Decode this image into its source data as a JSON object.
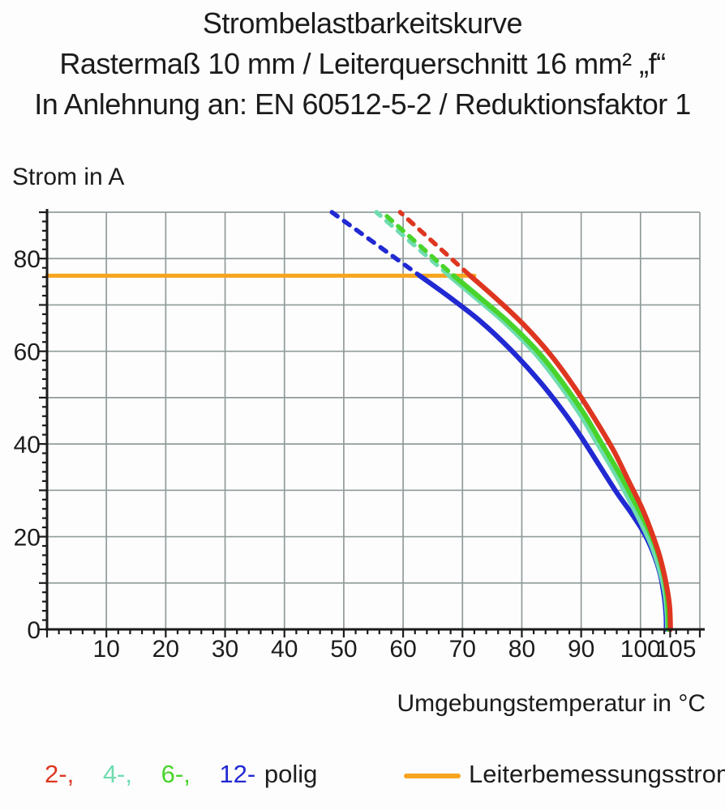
{
  "title": {
    "line1": "Strombelastbarkeitskurve",
    "line2": "Rastermaß 10 mm / Leiterquerschnitt 16 mm² „f“",
    "line3": "In Anlehnung an: EN 60512-5-2 / Reduktionsfaktor 1"
  },
  "chart_data": {
    "type": "line",
    "title": "Strombelastbarkeitskurve / Rastermaß 10 mm / Leiterquerschnitt 16 mm² „f“ / In Anlehnung an: EN 60512-5-2 / Reduktionsfaktor 1",
    "ylabel": "Strom in A",
    "xlabel": "Umgebungstemperatur in °C",
    "xlim": [
      0,
      110
    ],
    "ylim": [
      0,
      90
    ],
    "grid": true,
    "grid_step": 10,
    "minor_tick_step": 2,
    "x_ticks_labeled": [
      10,
      20,
      30,
      40,
      50,
      60,
      70,
      80,
      90,
      100,
      105
    ],
    "y_ticks_labeled": [
      0,
      20,
      40,
      60,
      80
    ],
    "colors": {
      "grid": "#919b9b",
      "axis": "#1b1b1b",
      "text": "#1c1c1c",
      "rated": "#f7a41e",
      "poles_2": "#de3620",
      "poles_4": "#6fdcb0",
      "poles_6": "#49d42b",
      "poles_12": "#2129d2"
    },
    "rated_current_line": {
      "label": "Leiterbemessungsstrom",
      "value_a": 76.3,
      "x_start": 0,
      "x_end": 72
    },
    "series": [
      {
        "name": "2-polig",
        "color": "#de3620",
        "dashed": [
          [
            59.5,
            90
          ],
          [
            71.3,
            76.3
          ]
        ],
        "solid": [
          [
            71.3,
            76.3
          ],
          [
            76,
            71
          ],
          [
            80.5,
            65.5
          ],
          [
            85,
            59
          ],
          [
            89,
            52
          ],
          [
            92.5,
            45
          ],
          [
            95.5,
            38.5
          ],
          [
            98,
            32
          ],
          [
            100.3,
            26
          ],
          [
            102,
            20.5
          ],
          [
            103.3,
            15.5
          ],
          [
            104.3,
            10
          ],
          [
            104.9,
            5
          ],
          [
            105.05,
            0
          ]
        ]
      },
      {
        "name": "4-polig",
        "color": "#6fdcb0",
        "dashed": [
          [
            55.5,
            90
          ],
          [
            67.8,
            76.3
          ]
        ],
        "solid": [
          [
            67.8,
            76.3
          ],
          [
            72.3,
            71.5
          ],
          [
            77.3,
            66
          ],
          [
            82.3,
            59.5
          ],
          [
            86.3,
            53
          ],
          [
            89.8,
            46.5
          ],
          [
            92.8,
            40
          ],
          [
            95.8,
            33.5
          ],
          [
            98.3,
            27.5
          ],
          [
            100.3,
            22.5
          ],
          [
            101.9,
            18
          ],
          [
            103.2,
            13
          ],
          [
            104.1,
            8
          ],
          [
            104.5,
            3
          ],
          [
            104.55,
            0
          ]
        ]
      },
      {
        "name": "6-polig",
        "color": "#49d42b",
        "dashed": [
          [
            56.5,
            90
          ],
          [
            68.5,
            76.3
          ]
        ],
        "solid": [
          [
            68.5,
            76.3
          ],
          [
            73,
            71.5
          ],
          [
            78,
            66
          ],
          [
            83,
            59.5
          ],
          [
            87,
            53
          ],
          [
            90.5,
            46.5
          ],
          [
            93.5,
            40
          ],
          [
            96.5,
            33.5
          ],
          [
            99,
            27.5
          ],
          [
            101,
            22.5
          ],
          [
            102.5,
            18
          ],
          [
            103.7,
            13
          ],
          [
            104.4,
            8
          ],
          [
            104.7,
            3
          ],
          [
            104.75,
            0
          ]
        ]
      },
      {
        "name": "12-polig",
        "color": "#2129d2",
        "dashed": [
          [
            48,
            90
          ],
          [
            62.8,
            76.3
          ]
        ],
        "solid": [
          [
            62.8,
            76.3
          ],
          [
            68,
            71.5
          ],
          [
            73,
            66.5
          ],
          [
            78,
            60.5
          ],
          [
            83,
            53.5
          ],
          [
            87,
            47
          ],
          [
            90,
            41.5
          ],
          [
            93,
            35.5
          ],
          [
            96,
            29.5
          ],
          [
            98.5,
            25
          ],
          [
            100.5,
            21
          ],
          [
            102,
            17
          ],
          [
            103.3,
            12
          ],
          [
            104,
            7
          ],
          [
            104.3,
            3
          ],
          [
            104.35,
            0
          ]
        ]
      }
    ]
  },
  "legend": {
    "poles": {
      "items": [
        {
          "label": "2-,",
          "color": "#de3620"
        },
        {
          "label": "4-,",
          "color": "#6fdcb0"
        },
        {
          "label": "6-,",
          "color": "#49d42b"
        },
        {
          "label": "12-",
          "color": "#2129d2"
        },
        {
          "label": "polig",
          "color": "#1f1f1f"
        }
      ]
    },
    "rated": {
      "label": "Leiterbemessungsstrom",
      "color": "#f7a41e"
    }
  }
}
